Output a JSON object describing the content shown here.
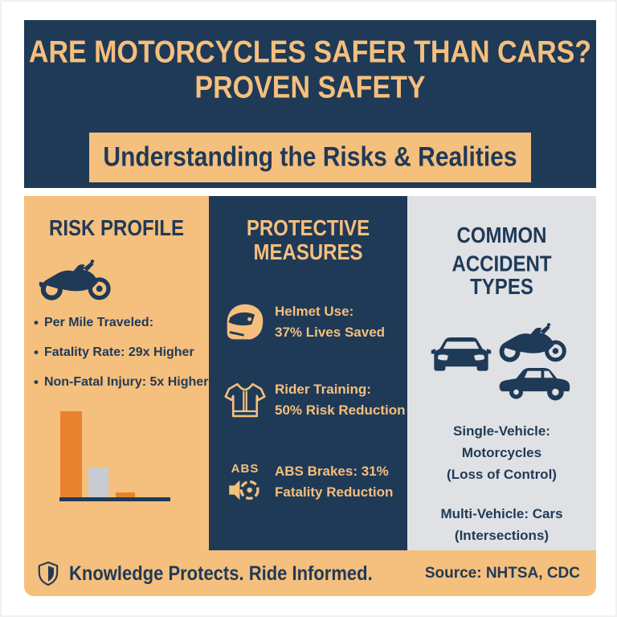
{
  "theme": {
    "navy": "#1f3a57",
    "tan": "#f5bf7d",
    "orange": "#e8822f",
    "bar-gray": "#c7ccd3",
    "panel-gray": "#dfe1e4",
    "page-bg": "#ffffff"
  },
  "header": {
    "title_line1": "ARE MOTORCYCLES SAFER THAN CARS?",
    "title_line2": "PROVEN SAFETY",
    "banner": "Understanding the Risks & Realities"
  },
  "risk_profile": {
    "title": "RISK PROFILE",
    "bullet_char": "•",
    "bullets": [
      "Per Mile Traveled:",
      "Fatality Rate: 29x Higher",
      "Non-Fatal Injury: 5x Higher"
    ]
  },
  "chart_data": {
    "type": "bar",
    "title": "",
    "xlabel": "",
    "ylabel": "",
    "categories": [
      "",
      "",
      ""
    ],
    "values": [
      107,
      37,
      6
    ],
    "colors": [
      "#e8822f",
      "#c7ccd3",
      "#e8822f"
    ],
    "axis_line_color": "#1f3a57",
    "legend": false
  },
  "protective_measures": {
    "title_lines": [
      "PROTECTIVE",
      "MEASURES"
    ],
    "items": [
      {
        "icon": "helmet-icon",
        "line1": "Helmet Use:",
        "line2": "37% Lives Saved"
      },
      {
        "icon": "rider-shirt-icon",
        "line1": "Rider Training:",
        "line2": "50% Risk Reduction"
      },
      {
        "icon": "abs-brake-icon",
        "abs_label": "ABS",
        "line1": "ABS Brakes: 31%",
        "line2": "Fatality Reduction"
      }
    ]
  },
  "accident_types": {
    "title_lines": [
      "COMMON ACCIDENT",
      "TYPES"
    ],
    "single_lines": [
      "Single-Vehicle:",
      "Motorcycles",
      "(Loss of Control)"
    ],
    "multi_lines": [
      "Multi-Vehicle: Cars",
      "(Intersections)"
    ]
  },
  "footer": {
    "tagline": "Knowledge Protects. Ride Informed.",
    "source": "Source: NHTSA, CDC"
  }
}
